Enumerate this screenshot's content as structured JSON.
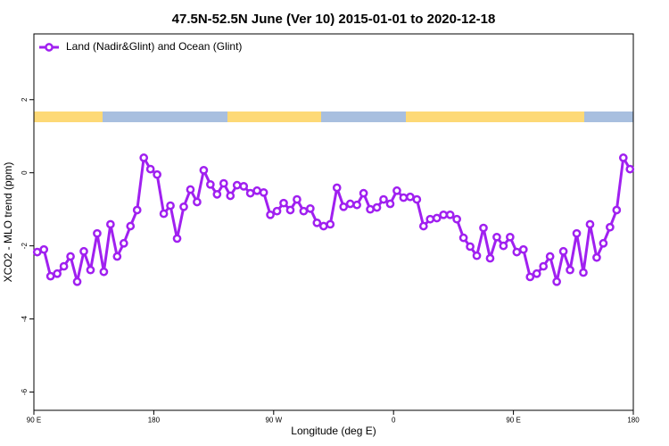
{
  "chart_data": {
    "type": "line",
    "title": "47.5N-52.5N June (Ver 10)   2015-01-01 to 2020-12-18",
    "x_label": "Longitude (deg E)",
    "y_label": "XCO2 - MLO trend (ppm)",
    "x": [
      92.5,
      97.5,
      102.5,
      107.5,
      112.5,
      117.5,
      122.5,
      127.5,
      132.5,
      137.5,
      142.5,
      147.5,
      152.5,
      157.5,
      162.5,
      167.5,
      172.5,
      177.5,
      182.5,
      187.5,
      192.5,
      197.5,
      202.5,
      207.5,
      212.5,
      217.5,
      222.5,
      227.5,
      232.5,
      237.5,
      242.5,
      247.5,
      252.5,
      257.5,
      262.5,
      267.5,
      272.5,
      277.5,
      282.5,
      287.5,
      292.5,
      297.5,
      302.5,
      307.5,
      312.5,
      317.5,
      322.5,
      327.5,
      332.5,
      337.5,
      342.5,
      347.5,
      352.5,
      357.5,
      362.5,
      367.5,
      372.5,
      377.5,
      382.5,
      387.5,
      392.5,
      397.5,
      402.5,
      407.5,
      412.5,
      417.5,
      422.5,
      427.5,
      432.5,
      437.5,
      442.5,
      447.5,
      452.5,
      457.5,
      462.5,
      467.5,
      472.5,
      477.5,
      482.5,
      487.5,
      492.5,
      497.5,
      502.5,
      507.5,
      512.5,
      517.5,
      522.5,
      527.5,
      532.5,
      537.5
    ],
    "series": [
      {
        "name": "Land (Nadir&Glint) and Ocean (Glint)",
        "color": "#a020f0",
        "values": [
          -2.17,
          -2.1,
          -2.83,
          -2.76,
          -2.56,
          -2.29,
          -2.98,
          -2.15,
          -2.66,
          -1.66,
          -2.71,
          -1.41,
          -2.29,
          -1.93,
          -1.46,
          -1.02,
          0.41,
          0.1,
          -0.05,
          -1.12,
          -0.9,
          -1.8,
          -0.93,
          -0.46,
          -0.8,
          0.07,
          -0.32,
          -0.59,
          -0.29,
          -0.63,
          -0.34,
          -0.37,
          -0.56,
          -0.49,
          -0.54,
          -1.15,
          -1.05,
          -0.83,
          -1.02,
          -0.73,
          -1.05,
          -0.98,
          -1.37,
          -1.46,
          -1.41,
          -0.41,
          -0.93,
          -0.85,
          -0.88,
          -0.56,
          -1.0,
          -0.95,
          -0.73,
          -0.85,
          -0.49,
          -0.68,
          -0.66,
          -0.73,
          -1.46,
          -1.27,
          -1.24,
          -1.15,
          -1.15,
          -1.27,
          -1.78,
          -2.02,
          -2.27,
          -1.51,
          -2.34,
          -1.76,
          -2.0,
          -1.76,
          -2.17,
          -2.1,
          -2.85,
          -2.76,
          -2.56,
          -2.29,
          -2.98,
          -2.15,
          -2.66,
          -1.66,
          -2.73,
          -1.41,
          -2.32,
          -1.93,
          -1.49,
          -1.02,
          0.41,
          0.1
        ]
      }
    ],
    "xlim": [
      90,
      540
    ],
    "xticks": [
      {
        "value": 90,
        "label": "90 E"
      },
      180,
      {
        "value": 270,
        "label": "90 W"
      },
      {
        "value": 360,
        "label": "0"
      },
      {
        "value": 450,
        "label": "90 E"
      },
      {
        "value": 540,
        "label": "180"
      }
    ],
    "ylim": [
      -6.5,
      3.8
    ],
    "yticks": [
      -6,
      -4,
      -2,
      0,
      2
    ],
    "legend": "top-left"
  }
}
